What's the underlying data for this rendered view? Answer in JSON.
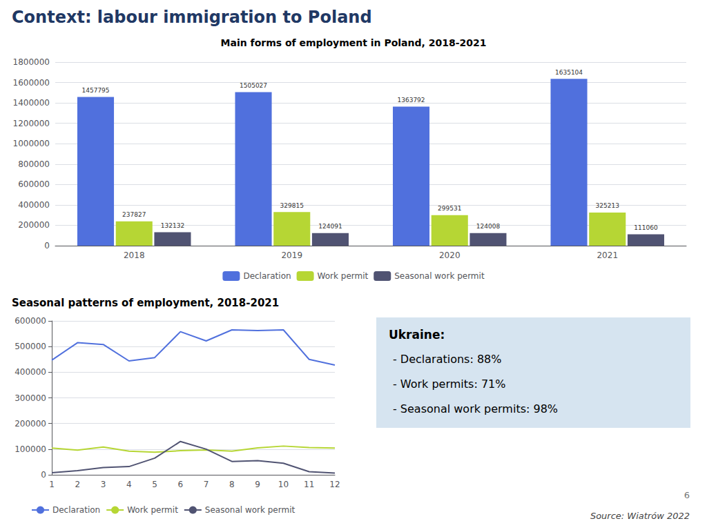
{
  "title": "Context: labour immigration to Poland",
  "annotations": [
    "Ukraine:",
    "- Declarations: 88%",
    "- Work permits: 71%",
    "- Seasonal work permits: 98%",
    "Source: Wiatrów 2022",
    "6"
  ],
  "chart_data": [
    {
      "type": "bar",
      "title": "Main forms of employment in Poland, 2018-2021",
      "categories": [
        "2018",
        "2019",
        "2020",
        "2021"
      ],
      "series": [
        {
          "name": "Declaration",
          "values": [
            1457795,
            1505027,
            1363792,
            1635104
          ]
        },
        {
          "name": "Work permit",
          "values": [
            237827,
            329815,
            299531,
            325213
          ]
        },
        {
          "name": "Seasonal work permit",
          "values": [
            132132,
            124091,
            124008,
            111060
          ]
        }
      ],
      "ylim": [
        0,
        1800000
      ],
      "yticks": [
        0,
        200000,
        400000,
        600000,
        800000,
        1000000,
        1200000,
        1400000,
        1600000,
        1800000
      ],
      "grid": true,
      "legend": "bottom",
      "data_labels": true
    },
    {
      "type": "line",
      "title": "Seasonal patterns of employment, 2018-2021",
      "x": [
        1,
        2,
        3,
        4,
        5,
        6,
        7,
        8,
        9,
        10,
        11,
        12
      ],
      "xlim": [
        1,
        12
      ],
      "xticks": [
        1,
        2,
        3,
        4,
        5,
        6,
        7,
        8,
        9,
        10,
        11,
        12
      ],
      "series": [
        {
          "name": "Declaration",
          "values": [
            447000,
            515000,
            508000,
            444000,
            457000,
            558000,
            522000,
            565000,
            562000,
            565000,
            450000,
            428000
          ]
        },
        {
          "name": "Work permit",
          "values": [
            104000,
            96000,
            108000,
            92000,
            88000,
            94000,
            97000,
            92000,
            105000,
            112000,
            106000,
            104000
          ]
        },
        {
          "name": "Seasonal work permit",
          "values": [
            8000,
            16000,
            28000,
            32000,
            65000,
            130000,
            100000,
            52000,
            55000,
            45000,
            12000,
            7000
          ]
        }
      ],
      "ylim": [
        0,
        600000
      ],
      "yticks": [
        0,
        100000,
        200000,
        300000,
        400000,
        500000,
        600000
      ],
      "grid": true,
      "legend": "bottom",
      "marker": "none"
    }
  ]
}
